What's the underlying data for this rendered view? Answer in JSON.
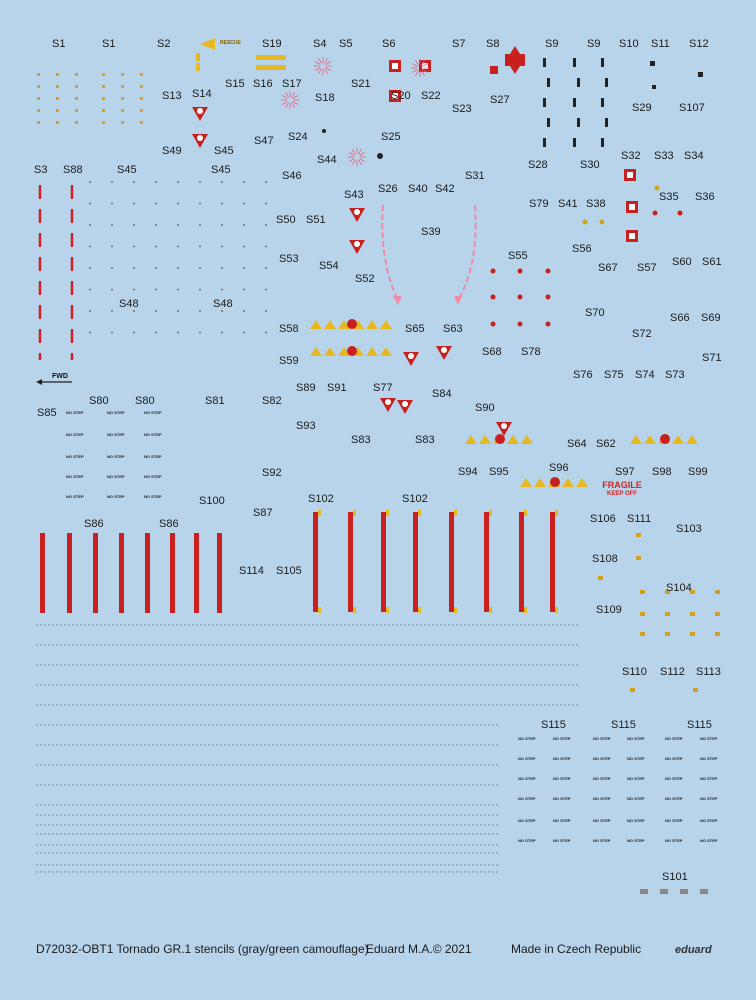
{
  "labels": [
    [
      "S1",
      60,
      38
    ],
    [
      "S1",
      110,
      38
    ],
    [
      "S2",
      165,
      38
    ],
    [
      "S19",
      270,
      38
    ],
    [
      "S4",
      321,
      38
    ],
    [
      "S5",
      347,
      38
    ],
    [
      "S6",
      390,
      38
    ],
    [
      "S7",
      460,
      38
    ],
    [
      "S8",
      494,
      38
    ],
    [
      "S9",
      553,
      38
    ],
    [
      "S9",
      595,
      38
    ],
    [
      "S10",
      627,
      38
    ],
    [
      "S11",
      659,
      38
    ],
    [
      "S12",
      697,
      38
    ],
    [
      "S15",
      233,
      78
    ],
    [
      "S16",
      261,
      78
    ],
    [
      "S17",
      290,
      78
    ],
    [
      "S21",
      359,
      78
    ],
    [
      "S13",
      170,
      90
    ],
    [
      "S14",
      200,
      88
    ],
    [
      "S18",
      323,
      92
    ],
    [
      "S20",
      399,
      90
    ],
    [
      "S22",
      429,
      90
    ],
    [
      "S27",
      498,
      94
    ],
    [
      "S23",
      460,
      103
    ],
    [
      "S29",
      640,
      102
    ],
    [
      "S107",
      687,
      102
    ],
    [
      "S47",
      262,
      135
    ],
    [
      "S24",
      296,
      131
    ],
    [
      "S25",
      389,
      131
    ],
    [
      "S49",
      170,
      145
    ],
    [
      "S45",
      222,
      145
    ],
    [
      "S44",
      325,
      154
    ],
    [
      "S32",
      629,
      150
    ],
    [
      "S33",
      662,
      150
    ],
    [
      "S34",
      692,
      150
    ],
    [
      "S28",
      536,
      159
    ],
    [
      "S30",
      588,
      159
    ],
    [
      "S3",
      42,
      164
    ],
    [
      "S88",
      71,
      164
    ],
    [
      "S45",
      125,
      164
    ],
    [
      "S45",
      219,
      164
    ],
    [
      "S46",
      290,
      170
    ],
    [
      "S31",
      473,
      170
    ],
    [
      "S26",
      386,
      183
    ],
    [
      "S40",
      416,
      183
    ],
    [
      "S42",
      443,
      183
    ],
    [
      "S43",
      352,
      189
    ],
    [
      "S35",
      667,
      191
    ],
    [
      "S36",
      703,
      191
    ],
    [
      "S79",
      537,
      198
    ],
    [
      "S41",
      566,
      198
    ],
    [
      "S38",
      594,
      198
    ],
    [
      "S50",
      284,
      214
    ],
    [
      "S51",
      314,
      214
    ],
    [
      "S39",
      429,
      226
    ],
    [
      "S56",
      580,
      243
    ],
    [
      "S53",
      287,
      253
    ],
    [
      "S54",
      327,
      260
    ],
    [
      "S55",
      516,
      250
    ],
    [
      "S67",
      606,
      262
    ],
    [
      "S57",
      645,
      262
    ],
    [
      "S60",
      680,
      256
    ],
    [
      "S61",
      710,
      256
    ],
    [
      "S52",
      363,
      273
    ],
    [
      "S48",
      127,
      298
    ],
    [
      "S48",
      221,
      298
    ],
    [
      "S70",
      593,
      307
    ],
    [
      "S66",
      678,
      312
    ],
    [
      "S69",
      709,
      312
    ],
    [
      "S58",
      287,
      323
    ],
    [
      "S65",
      413,
      323
    ],
    [
      "S63",
      451,
      323
    ],
    [
      "S72",
      640,
      328
    ],
    [
      "S68",
      490,
      346
    ],
    [
      "S78",
      529,
      346
    ],
    [
      "S71",
      710,
      352
    ],
    [
      "S59",
      287,
      355
    ],
    [
      "S76",
      581,
      369
    ],
    [
      "S75",
      612,
      369
    ],
    [
      "S74",
      643,
      369
    ],
    [
      "S73",
      673,
      369
    ],
    [
      "S89",
      304,
      382
    ],
    [
      "S91",
      335,
      382
    ],
    [
      "S77",
      381,
      382
    ],
    [
      "S84",
      440,
      388
    ],
    [
      "S80",
      97,
      395
    ],
    [
      "S80",
      143,
      395
    ],
    [
      "S81",
      213,
      395
    ],
    [
      "S82",
      270,
      395
    ],
    [
      "S90",
      483,
      402
    ],
    [
      "S85",
      45,
      407
    ],
    [
      "S93",
      304,
      420
    ],
    [
      "S83",
      359,
      434
    ],
    [
      "S83",
      423,
      434
    ],
    [
      "S64",
      575,
      438
    ],
    [
      "S62",
      604,
      438
    ],
    [
      "S96",
      557,
      462
    ],
    [
      "S92",
      270,
      467
    ],
    [
      "S94",
      466,
      466
    ],
    [
      "S95",
      497,
      466
    ],
    [
      "S97",
      623,
      466
    ],
    [
      "S98",
      660,
      466
    ],
    [
      "S99",
      696,
      466
    ],
    [
      "S100",
      207,
      495
    ],
    [
      "S102",
      316,
      493
    ],
    [
      "S102",
      410,
      493
    ],
    [
      "S87",
      261,
      507
    ],
    [
      "S106",
      598,
      513
    ],
    [
      "S111",
      635,
      513
    ],
    [
      "S103",
      684,
      523
    ],
    [
      "S86",
      92,
      518
    ],
    [
      "S86",
      167,
      518
    ],
    [
      "S108",
      600,
      553
    ],
    [
      "S114",
      247,
      565
    ],
    [
      "S105",
      284,
      565
    ],
    [
      "S104",
      674,
      582
    ],
    [
      "S109",
      604,
      604
    ],
    [
      "S110",
      630,
      666
    ],
    [
      "S112",
      668,
      666
    ],
    [
      "S113",
      704,
      666
    ],
    [
      "S115",
      549,
      719
    ],
    [
      "S115",
      619,
      719
    ],
    [
      "S115",
      695,
      719
    ],
    [
      "S101",
      670,
      871
    ]
  ],
  "footer": {
    "code": "D72032-OBT1 Tornado GR.1 stencils (gray/green camouflage)",
    "copyright": "Eduard M.A.© 2021",
    "origin": "Made in Czech Republic",
    "brand": "eduard"
  },
  "stencils": {
    "rescue": "RESCUE",
    "fwd": "FWD",
    "no_step": "NO STEP",
    "fragile_line1": "FRAGILE",
    "fragile_line2": "KEEP OFF"
  },
  "colors": {
    "background": "#b8d4ea",
    "red": "#c8201f",
    "yellow": "#e8b820",
    "pink": "#f08aa8",
    "dark": "#222222"
  }
}
